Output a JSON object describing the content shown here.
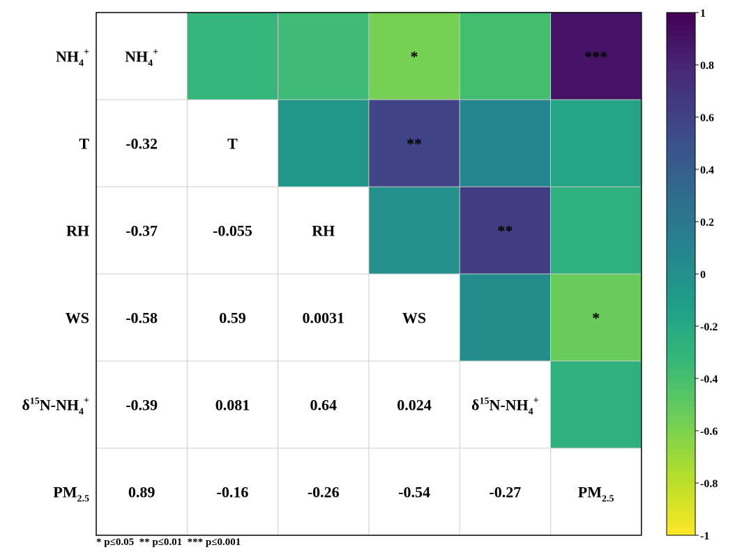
{
  "chart_data": {
    "type": "heatmap",
    "variables": [
      {
        "name": "NH4+",
        "base": "NH",
        "sub": "4",
        "sup": "+",
        "pre": ""
      },
      {
        "name": "T",
        "base": "T",
        "sub": "",
        "sup": "",
        "pre": ""
      },
      {
        "name": "RH",
        "base": "RH",
        "sub": "",
        "sup": "",
        "pre": ""
      },
      {
        "name": "WS",
        "base": "WS",
        "sub": "",
        "sup": "",
        "pre": ""
      },
      {
        "name": "δ15N-NH4+",
        "base": "N-NH",
        "sub": "4",
        "sup": "+",
        "pre": "δ",
        "presup": "15"
      },
      {
        "name": "PM2.5",
        "base": "PM",
        "sub": "2.5",
        "sup": "",
        "pre": ""
      }
    ],
    "lower_values": [
      {
        "row": 1,
        "col": 0,
        "value": -0.32,
        "text": "-0.32"
      },
      {
        "row": 2,
        "col": 0,
        "value": -0.37,
        "text": "-0.37"
      },
      {
        "row": 2,
        "col": 1,
        "value": -0.055,
        "text": "-0.055"
      },
      {
        "row": 3,
        "col": 0,
        "value": -0.58,
        "text": "-0.58"
      },
      {
        "row": 3,
        "col": 1,
        "value": 0.59,
        "text": "0.59"
      },
      {
        "row": 3,
        "col": 2,
        "value": 0.0031,
        "text": "0.0031"
      },
      {
        "row": 4,
        "col": 0,
        "value": -0.39,
        "text": "-0.39"
      },
      {
        "row": 4,
        "col": 1,
        "value": 0.081,
        "text": "0.081"
      },
      {
        "row": 4,
        "col": 2,
        "value": 0.64,
        "text": "0.64"
      },
      {
        "row": 4,
        "col": 3,
        "value": 0.024,
        "text": "0.024"
      },
      {
        "row": 5,
        "col": 0,
        "value": 0.89,
        "text": "0.89"
      },
      {
        "row": 5,
        "col": 1,
        "value": -0.16,
        "text": "-0.16"
      },
      {
        "row": 5,
        "col": 2,
        "value": -0.26,
        "text": "-0.26"
      },
      {
        "row": 5,
        "col": 3,
        "value": -0.54,
        "text": "-0.54"
      },
      {
        "row": 5,
        "col": 4,
        "value": -0.27,
        "text": "-0.27"
      }
    ],
    "significance": [
      {
        "row": 0,
        "col": 3,
        "stars": "*"
      },
      {
        "row": 0,
        "col": 5,
        "stars": "***"
      },
      {
        "row": 1,
        "col": 3,
        "stars": "**"
      },
      {
        "row": 2,
        "col": 4,
        "stars": "**"
      },
      {
        "row": 3,
        "col": 5,
        "stars": "*"
      }
    ],
    "colorbar": {
      "range": [
        -1,
        1
      ],
      "ticks": [
        "1",
        "0.8",
        "0.6",
        "0.4",
        "0.2",
        "0",
        "-0.2",
        "-0.4",
        "-0.6",
        "-0.8",
        "-1"
      ],
      "palette": [
        "#440154",
        "#482878",
        "#3e4989",
        "#31688e",
        "#26828e",
        "#1f9e89",
        "#35b779",
        "#6ece58",
        "#b5de2b",
        "#fde725"
      ]
    },
    "grid_color": "#cccccc",
    "legend_note": "* p≤0.05  ** p≤0.01  *** p≤0.001"
  }
}
